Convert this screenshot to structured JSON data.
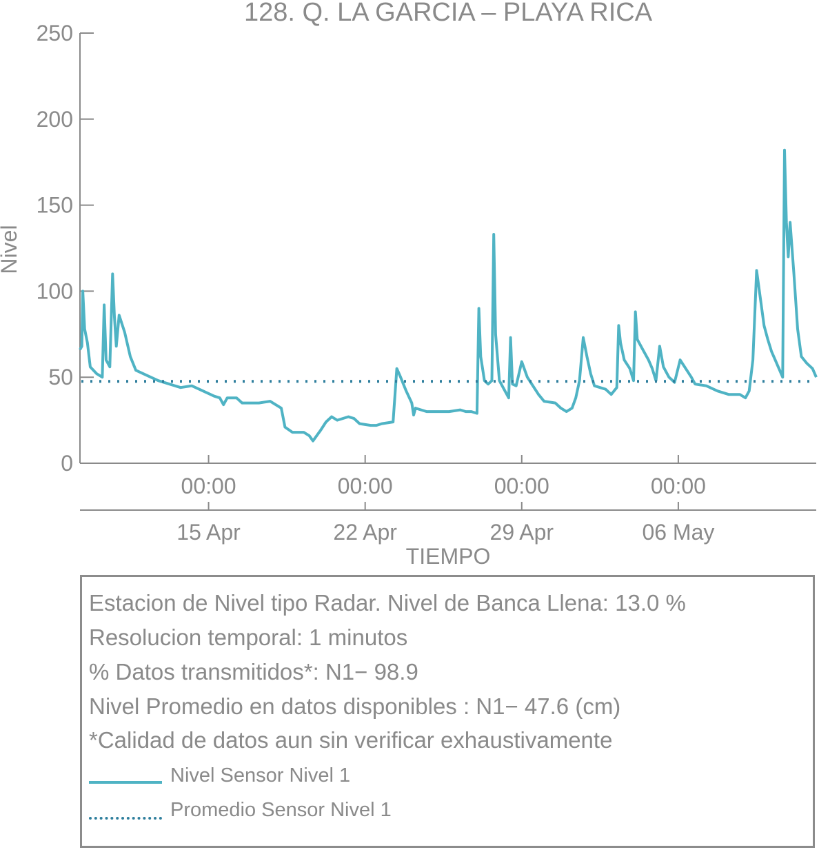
{
  "chart_data": {
    "type": "line",
    "title": "128. Q. LA GARCIA – PLAYA RICA",
    "xlabel": "TIEMPO",
    "ylabel": "Nivel",
    "ylim": [
      0,
      250
    ],
    "yticks": [
      0,
      50,
      100,
      150,
      200,
      250
    ],
    "xlim": [
      "2019-04-09 06:00",
      "2019-05-12 04:00"
    ],
    "xticks": [
      {
        "time": "2019-04-15 00:00",
        "time_label": "00:00",
        "date_label": "15 Apr"
      },
      {
        "time": "2019-04-22 00:00",
        "time_label": "00:00",
        "date_label": "22 Apr"
      },
      {
        "time": "2019-04-29 00:00",
        "time_label": "00:00",
        "date_label": "29 Apr"
      },
      {
        "time": "2019-05-06 00:00",
        "time_label": "00:00",
        "date_label": "06 May"
      }
    ],
    "grid": false,
    "colors": {
      "nivel": "#4fb3c4",
      "promedio": "#2f7f9d",
      "axis": "#8a8a8a"
    },
    "series": [
      {
        "name": "Nivel Sensor Nivel 1",
        "style": "solid",
        "points": [
          [
            "2019-04-09 06:00",
            66
          ],
          [
            "2019-04-09 08:00",
            68
          ],
          [
            "2019-04-09 09:00",
            100
          ],
          [
            "2019-04-09 11:00",
            78
          ],
          [
            "2019-04-09 14:00",
            70
          ],
          [
            "2019-04-09 17:00",
            56
          ],
          [
            "2019-04-10 00:00",
            52
          ],
          [
            "2019-04-10 06:00",
            50
          ],
          [
            "2019-04-10 08:00",
            92
          ],
          [
            "2019-04-10 10:00",
            60
          ],
          [
            "2019-04-10 14:00",
            56
          ],
          [
            "2019-04-10 17:00",
            110
          ],
          [
            "2019-04-10 19:00",
            85
          ],
          [
            "2019-04-10 21:00",
            68
          ],
          [
            "2019-04-11 00:00",
            86
          ],
          [
            "2019-04-11 06:00",
            76
          ],
          [
            "2019-04-11 12:00",
            62
          ],
          [
            "2019-04-11 18:00",
            54
          ],
          [
            "2019-04-12 06:00",
            51
          ],
          [
            "2019-04-12 18:00",
            48
          ],
          [
            "2019-04-13 06:00",
            46
          ],
          [
            "2019-04-13 18:00",
            44
          ],
          [
            "2019-04-14 06:00",
            45
          ],
          [
            "2019-04-14 18:00",
            42
          ],
          [
            "2019-04-15 06:00",
            39
          ],
          [
            "2019-04-15 12:00",
            38
          ],
          [
            "2019-04-15 16:00",
            34
          ],
          [
            "2019-04-15 20:00",
            38
          ],
          [
            "2019-04-16 06:00",
            38
          ],
          [
            "2019-04-16 12:00",
            35
          ],
          [
            "2019-04-17 06:00",
            35
          ],
          [
            "2019-04-17 18:00",
            36
          ],
          [
            "2019-04-18 00:00",
            34
          ],
          [
            "2019-04-18 06:00",
            32
          ],
          [
            "2019-04-18 10:00",
            21
          ],
          [
            "2019-04-18 18:00",
            18
          ],
          [
            "2019-04-19 06:00",
            18
          ],
          [
            "2019-04-19 12:00",
            16
          ],
          [
            "2019-04-19 16:00",
            13
          ],
          [
            "2019-04-19 20:00",
            16
          ],
          [
            "2019-04-20 00:00",
            19
          ],
          [
            "2019-04-20 06:00",
            24
          ],
          [
            "2019-04-20 12:00",
            27
          ],
          [
            "2019-04-20 18:00",
            25
          ],
          [
            "2019-04-21 06:00",
            27
          ],
          [
            "2019-04-21 12:00",
            26
          ],
          [
            "2019-04-21 18:00",
            23
          ],
          [
            "2019-04-22 06:00",
            22
          ],
          [
            "2019-04-22 12:00",
            22
          ],
          [
            "2019-04-22 18:00",
            23
          ],
          [
            "2019-04-23 06:00",
            24
          ],
          [
            "2019-04-23 10:00",
            55
          ],
          [
            "2019-04-23 14:00",
            50
          ],
          [
            "2019-04-23 20:00",
            42
          ],
          [
            "2019-04-24 02:00",
            35
          ],
          [
            "2019-04-24 04:00",
            28
          ],
          [
            "2019-04-24 06:00",
            32
          ],
          [
            "2019-04-24 12:00",
            31
          ],
          [
            "2019-04-24 18:00",
            30
          ],
          [
            "2019-04-25 06:00",
            30
          ],
          [
            "2019-04-25 18:00",
            30
          ],
          [
            "2019-04-26 06:00",
            31
          ],
          [
            "2019-04-26 12:00",
            30
          ],
          [
            "2019-04-26 18:00",
            30
          ],
          [
            "2019-04-27 00:00",
            29
          ],
          [
            "2019-04-27 02:00",
            90
          ],
          [
            "2019-04-27 04:00",
            62
          ],
          [
            "2019-04-27 08:00",
            48
          ],
          [
            "2019-04-27 12:00",
            46
          ],
          [
            "2019-04-27 16:00",
            48
          ],
          [
            "2019-04-27 18:00",
            133
          ],
          [
            "2019-04-27 20:00",
            75
          ],
          [
            "2019-04-28 00:00",
            48
          ],
          [
            "2019-04-28 06:00",
            42
          ],
          [
            "2019-04-28 10:00",
            38
          ],
          [
            "2019-04-28 12:00",
            73
          ],
          [
            "2019-04-28 14:00",
            46
          ],
          [
            "2019-04-28 18:00",
            45
          ],
          [
            "2019-04-29 00:00",
            59
          ],
          [
            "2019-04-29 06:00",
            50
          ],
          [
            "2019-04-29 12:00",
            45
          ],
          [
            "2019-04-29 18:00",
            40
          ],
          [
            "2019-04-30 00:00",
            36
          ],
          [
            "2019-04-30 12:00",
            35
          ],
          [
            "2019-04-30 18:00",
            32
          ],
          [
            "2019-05-01 00:00",
            30
          ],
          [
            "2019-05-01 06:00",
            32
          ],
          [
            "2019-05-01 10:00",
            38
          ],
          [
            "2019-05-01 14:00",
            48
          ],
          [
            "2019-05-01 18:00",
            73
          ],
          [
            "2019-05-01 22:00",
            62
          ],
          [
            "2019-05-02 02:00",
            52
          ],
          [
            "2019-05-02 06:00",
            45
          ],
          [
            "2019-05-02 18:00",
            43
          ],
          [
            "2019-05-03 00:00",
            40
          ],
          [
            "2019-05-03 06:00",
            44
          ],
          [
            "2019-05-03 08:00",
            80
          ],
          [
            "2019-05-03 10:00",
            70
          ],
          [
            "2019-05-03 14:00",
            60
          ],
          [
            "2019-05-03 20:00",
            55
          ],
          [
            "2019-05-04 00:00",
            48
          ],
          [
            "2019-05-04 02:00",
            88
          ],
          [
            "2019-05-04 04:00",
            72
          ],
          [
            "2019-05-04 10:00",
            66
          ],
          [
            "2019-05-04 16:00",
            60
          ],
          [
            "2019-05-04 20:00",
            55
          ],
          [
            "2019-05-05 00:00",
            48
          ],
          [
            "2019-05-05 04:00",
            68
          ],
          [
            "2019-05-05 08:00",
            56
          ],
          [
            "2019-05-05 14:00",
            50
          ],
          [
            "2019-05-05 20:00",
            47
          ],
          [
            "2019-05-06 02:00",
            60
          ],
          [
            "2019-05-06 08:00",
            55
          ],
          [
            "2019-05-06 14:00",
            50
          ],
          [
            "2019-05-06 18:00",
            46
          ],
          [
            "2019-05-07 06:00",
            45
          ],
          [
            "2019-05-07 18:00",
            42
          ],
          [
            "2019-05-08 06:00",
            40
          ],
          [
            "2019-05-08 18:00",
            40
          ],
          [
            "2019-05-09 00:00",
            38
          ],
          [
            "2019-05-09 04:00",
            42
          ],
          [
            "2019-05-09 08:00",
            60
          ],
          [
            "2019-05-09 12:00",
            112
          ],
          [
            "2019-05-09 16:00",
            96
          ],
          [
            "2019-05-09 20:00",
            80
          ],
          [
            "2019-05-10 00:00",
            72
          ],
          [
            "2019-05-10 04:00",
            65
          ],
          [
            "2019-05-10 08:00",
            60
          ],
          [
            "2019-05-10 12:00",
            55
          ],
          [
            "2019-05-10 16:00",
            50
          ],
          [
            "2019-05-10 18:00",
            182
          ],
          [
            "2019-05-10 20:00",
            140
          ],
          [
            "2019-05-10 22:00",
            120
          ],
          [
            "2019-05-11 00:00",
            140
          ],
          [
            "2019-05-11 04:00",
            110
          ],
          [
            "2019-05-11 08:00",
            78
          ],
          [
            "2019-05-11 12:00",
            62
          ],
          [
            "2019-05-11 18:00",
            58
          ],
          [
            "2019-05-12 00:00",
            55
          ],
          [
            "2019-05-12 04:00",
            50
          ]
        ]
      },
      {
        "name": "Promedio Sensor Nivel 1",
        "style": "dotted",
        "constant": 47.6
      }
    ]
  },
  "info": {
    "lines": [
      "Estacion de Nivel tipo Radar. Nivel de Banca Llena: 13.0 %",
      "Resolucion temporal: 1 minutos",
      "% Datos transmitidos*: N1− 98.9",
      "Nivel Promedio en datos disponibles : N1− 47.6 (cm)",
      "*Calidad de datos aun sin verificar exhaustivamente"
    ],
    "legend": [
      {
        "label": "Nivel Sensor Nivel 1",
        "style": "solid"
      },
      {
        "label": "Promedio Sensor Nivel 1",
        "style": "dotted"
      }
    ]
  }
}
